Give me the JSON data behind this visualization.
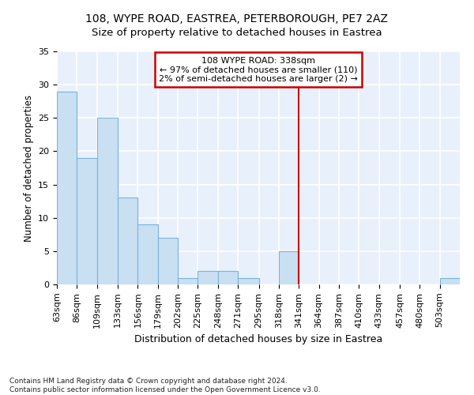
{
  "title1": "108, WYPE ROAD, EASTREA, PETERBOROUGH, PE7 2AZ",
  "title2": "Size of property relative to detached houses in Eastrea",
  "xlabel": "Distribution of detached houses by size in Eastrea",
  "ylabel": "Number of detached properties",
  "bar_color": "#c9dff2",
  "bar_edge_color": "#7ab4d8",
  "background_color": "#e8f0fb",
  "grid_color": "#d0d8e8",
  "annotation_text": "108 WYPE ROAD: 338sqm\n← 97% of detached houses are smaller (110)\n2% of semi-detached houses are larger (2) →",
  "vline_x": 341,
  "vline_color": "#cc0000",
  "annotation_box_edgecolor": "#cc0000",
  "bin_edges": [
    63,
    86,
    109,
    133,
    156,
    179,
    202,
    225,
    248,
    271,
    295,
    318,
    341,
    364,
    387,
    410,
    433,
    457,
    480,
    503,
    526
  ],
  "bin_counts": [
    29,
    19,
    25,
    13,
    9,
    7,
    1,
    2,
    2,
    1,
    0,
    5,
    0,
    0,
    0,
    0,
    0,
    0,
    0,
    1
  ],
  "ylim": [
    0,
    35
  ],
  "yticks": [
    0,
    5,
    10,
    15,
    20,
    25,
    30,
    35
  ],
  "footnote": "Contains HM Land Registry data © Crown copyright and database right 2024.\nContains public sector information licensed under the Open Government Licence v3.0.",
  "title_fontsize": 10,
  "subtitle_fontsize": 9.5,
  "tick_fontsize": 8,
  "ylabel_fontsize": 8.5,
  "xlabel_fontsize": 9,
  "footnote_fontsize": 6.5
}
